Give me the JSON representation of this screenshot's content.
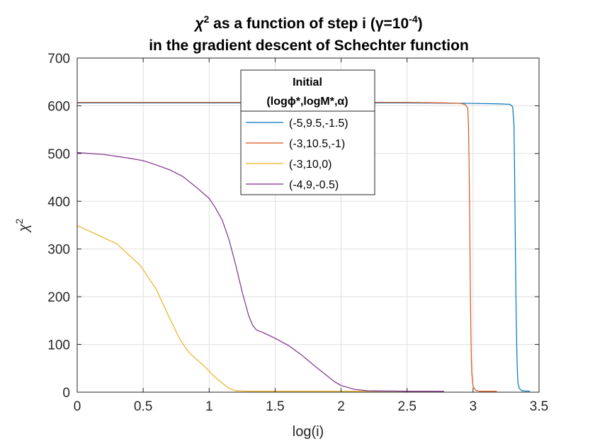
{
  "chart_data": {
    "type": "line",
    "title_line1_parts": [
      "χ",
      "2",
      " as a function of step i (γ=10",
      "-4",
      ")"
    ],
    "title_line2": "in the gradient descent of Schechter function",
    "xlabel": "log(i)",
    "ylabel_base": "χ",
    "ylabel_sup": "2",
    "xlim": [
      0,
      3.5
    ],
    "ylim": [
      0,
      700
    ],
    "xticks": [
      0,
      0.5,
      1,
      1.5,
      2,
      2.5,
      3,
      3.5
    ],
    "xtick_labels": [
      "0",
      "0.5",
      "1",
      "1.5",
      "2",
      "2.5",
      "3",
      "3.5"
    ],
    "yticks": [
      0,
      100,
      200,
      300,
      400,
      500,
      600,
      700
    ],
    "ytick_labels": [
      "0",
      "100",
      "200",
      "300",
      "400",
      "500",
      "600",
      "700"
    ],
    "grid": true,
    "legend_position": "top-center",
    "legend_title_line1": "Initial",
    "legend_title_line2": "(logϕ*,logM*,α)",
    "series": [
      {
        "name": "(-5,9.5,-1.5)",
        "color": "#0072BD",
        "points": [
          [
            0,
            606
          ],
          [
            1,
            606
          ],
          [
            2,
            606
          ],
          [
            2.5,
            606
          ],
          [
            3,
            605
          ],
          [
            3.2,
            604
          ],
          [
            3.28,
            603
          ],
          [
            3.3,
            598
          ],
          [
            3.31,
            560
          ],
          [
            3.315,
            450
          ],
          [
            3.32,
            320
          ],
          [
            3.325,
            200
          ],
          [
            3.33,
            110
          ],
          [
            3.335,
            50
          ],
          [
            3.34,
            20
          ],
          [
            3.35,
            8
          ],
          [
            3.37,
            3
          ],
          [
            3.43,
            2
          ]
        ]
      },
      {
        "name": "(-3,10.5,-1)",
        "color": "#D95319",
        "points": [
          [
            0,
            607
          ],
          [
            1,
            607
          ],
          [
            2,
            607
          ],
          [
            2.5,
            607
          ],
          [
            2.8,
            606
          ],
          [
            2.9,
            605
          ],
          [
            2.94,
            603
          ],
          [
            2.96,
            595
          ],
          [
            2.965,
            560
          ],
          [
            2.97,
            480
          ],
          [
            2.975,
            350
          ],
          [
            2.98,
            200
          ],
          [
            2.985,
            100
          ],
          [
            2.99,
            40
          ],
          [
            3.0,
            12
          ],
          [
            3.02,
            4
          ],
          [
            3.05,
            2
          ],
          [
            3.18,
            2
          ]
        ]
      },
      {
        "name": "(-3,10,0)",
        "color": "#EDB120",
        "points": [
          [
            0,
            349
          ],
          [
            0.3,
            311
          ],
          [
            0.48,
            265
          ],
          [
            0.6,
            215
          ],
          [
            0.7,
            155
          ],
          [
            0.78,
            110
          ],
          [
            0.85,
            82
          ],
          [
            0.95,
            58
          ],
          [
            1.05,
            30
          ],
          [
            1.15,
            8
          ],
          [
            1.2,
            3
          ],
          [
            1.3,
            2
          ],
          [
            2.0,
            2
          ],
          [
            2.5,
            2
          ],
          [
            2.78,
            2
          ]
        ]
      },
      {
        "name": "(-4,9,-0.5)",
        "color": "#7E2F8E",
        "points": [
          [
            0,
            502
          ],
          [
            0.1,
            500
          ],
          [
            0.2,
            498
          ],
          [
            0.3,
            494
          ],
          [
            0.4,
            490
          ],
          [
            0.5,
            485
          ],
          [
            0.6,
            476
          ],
          [
            0.7,
            466
          ],
          [
            0.8,
            452
          ],
          [
            0.9,
            430
          ],
          [
            1.0,
            406
          ],
          [
            1.05,
            385
          ],
          [
            1.1,
            360
          ],
          [
            1.15,
            320
          ],
          [
            1.2,
            268
          ],
          [
            1.25,
            210
          ],
          [
            1.3,
            160
          ],
          [
            1.33,
            140
          ],
          [
            1.36,
            130
          ],
          [
            1.4,
            126
          ],
          [
            1.5,
            113
          ],
          [
            1.6,
            98
          ],
          [
            1.7,
            78
          ],
          [
            1.8,
            55
          ],
          [
            1.9,
            33
          ],
          [
            1.95,
            22
          ],
          [
            2.0,
            14
          ],
          [
            2.1,
            6
          ],
          [
            2.2,
            3
          ],
          [
            2.5,
            2
          ],
          [
            2.78,
            2
          ]
        ]
      }
    ]
  }
}
